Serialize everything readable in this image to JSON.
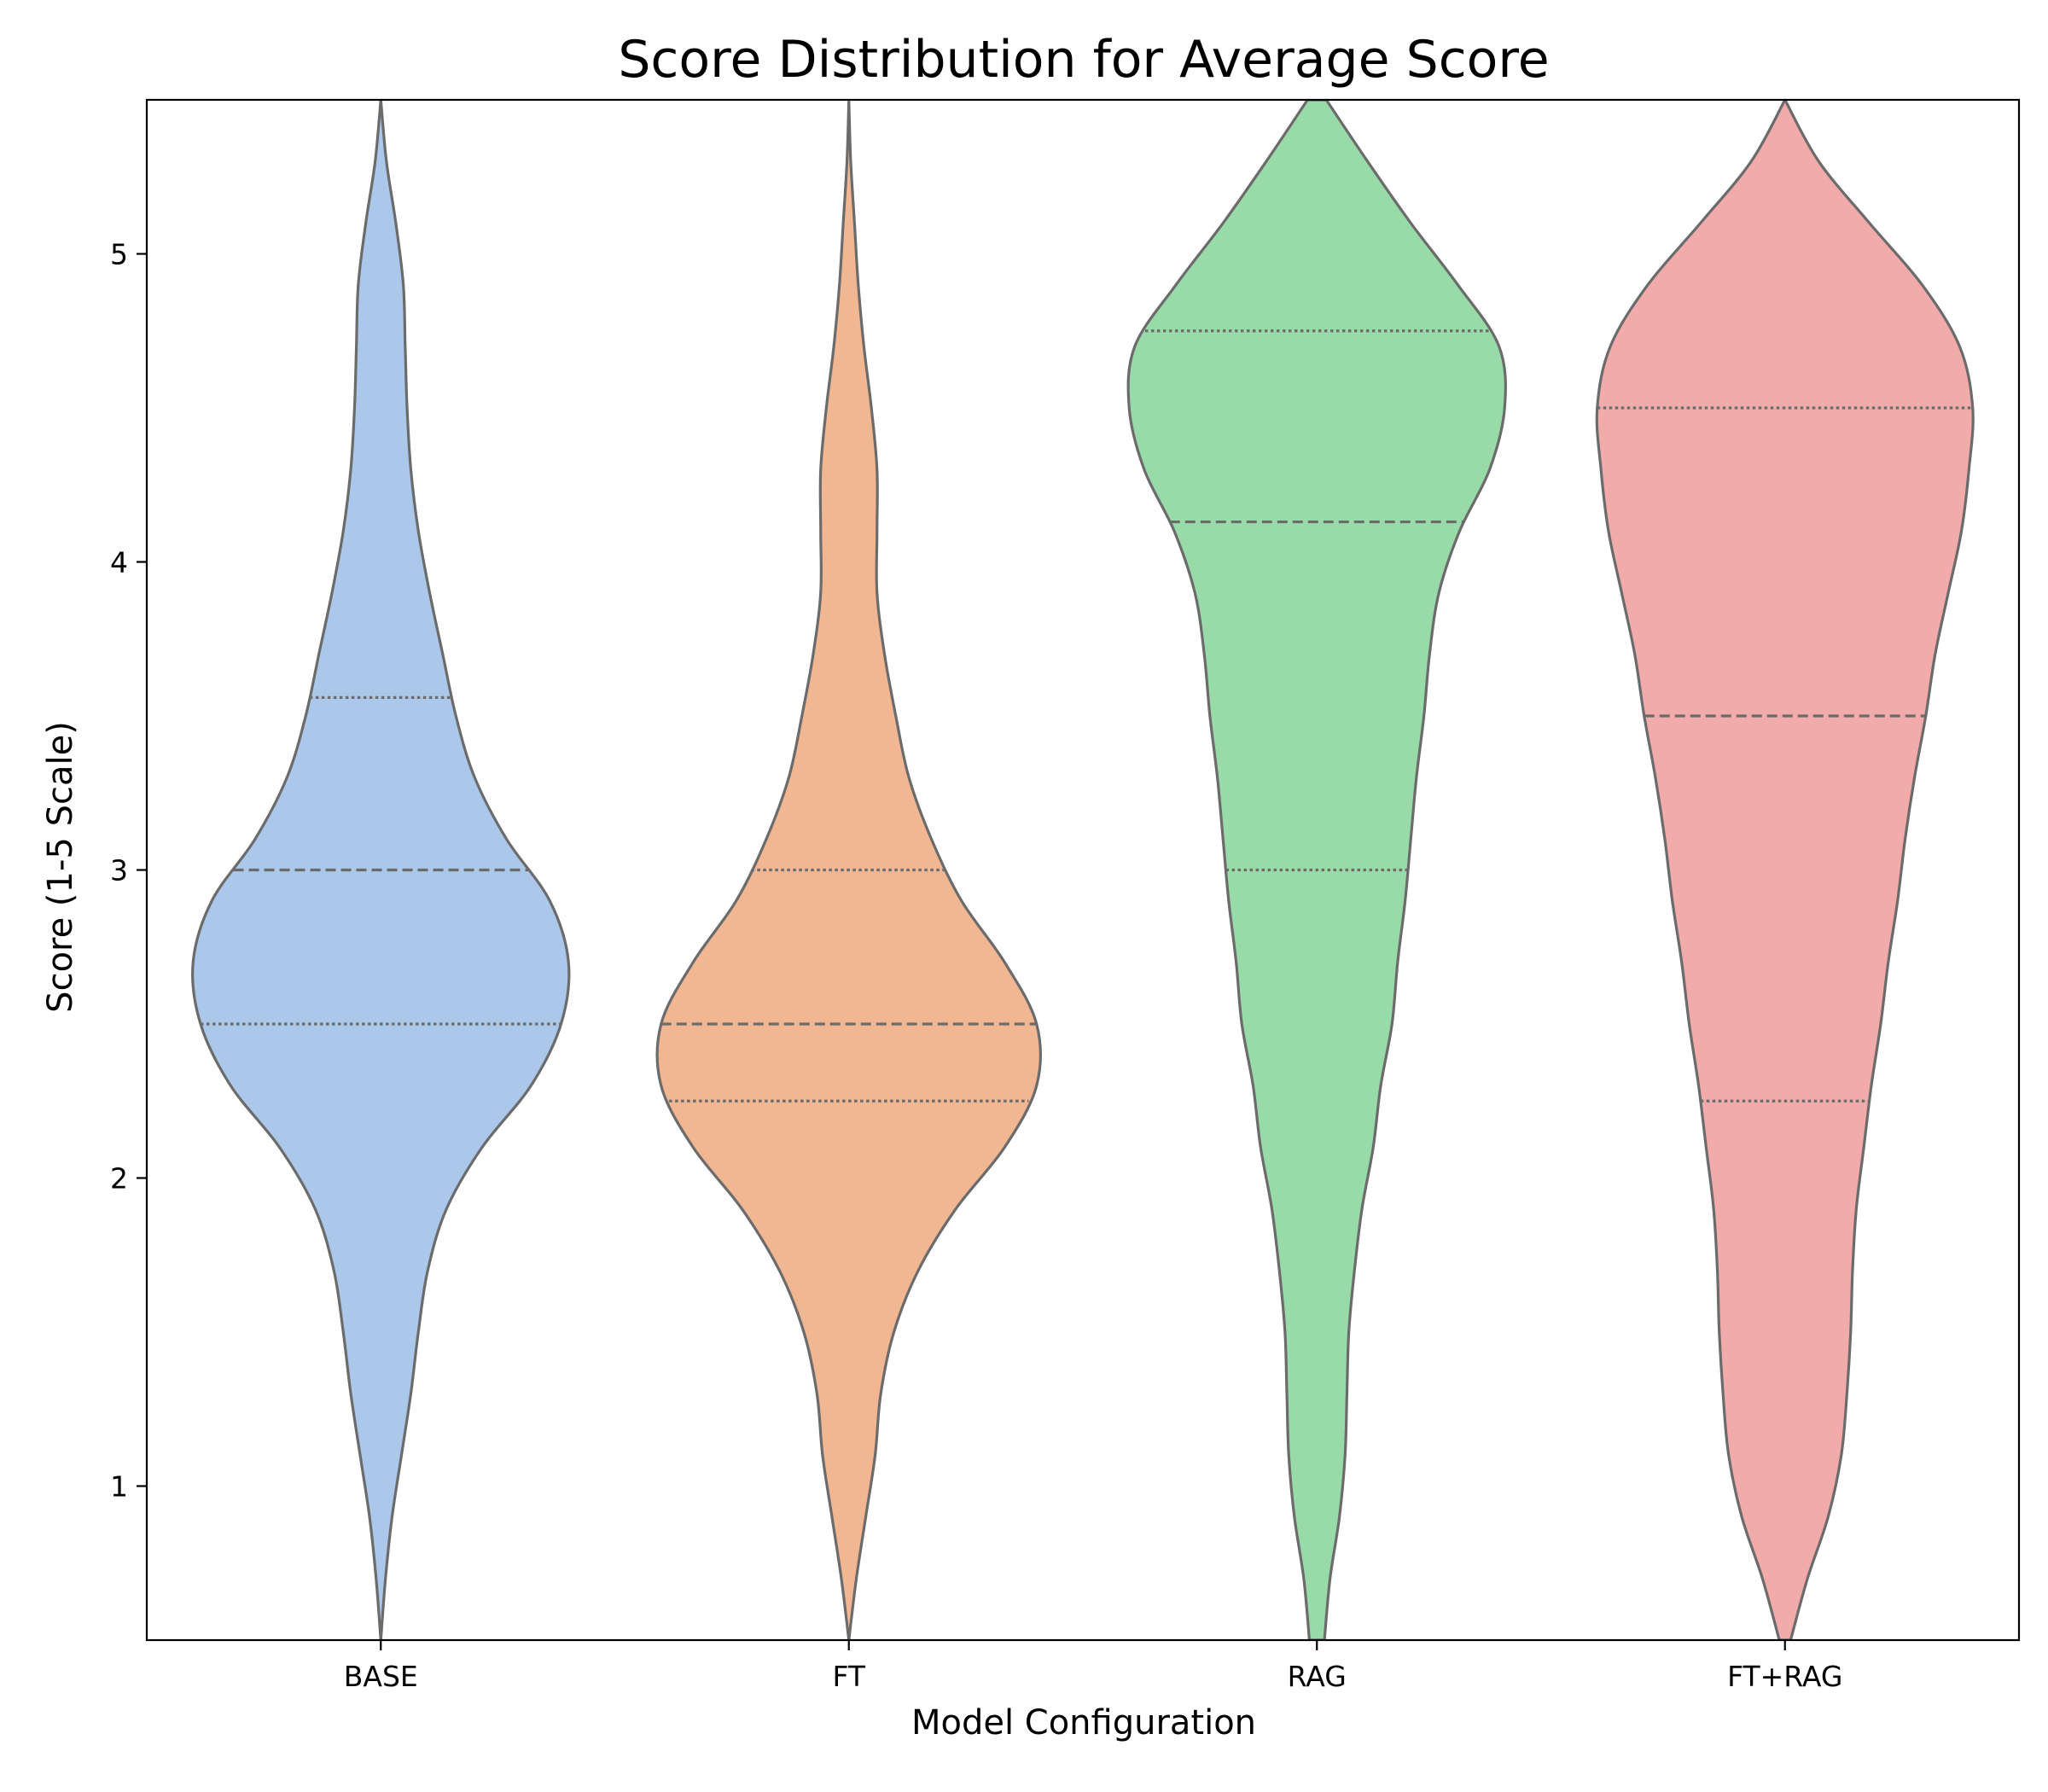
{
  "chart_data": {
    "type": "violin",
    "title": "Score Distribution for Average Score",
    "xlabel": "Model Configuration",
    "ylabel": "Score (1-5 Scale)",
    "ylim": [
      0.5,
      5.5
    ],
    "yticks": [
      1,
      2,
      3,
      4,
      5
    ],
    "grid": false,
    "inner": "quartile",
    "categories": [
      "BASE",
      "FT",
      "RAG",
      "FT+RAG"
    ],
    "colors": {
      "BASE": "#abc8ea",
      "FT": "#f0b792",
      "RAG": "#99dba8",
      "FT+RAG": "#f1abaa"
    },
    "outline_color": "#6b6b6b",
    "series": [
      {
        "name": "BASE",
        "quartiles": [
          2.5,
          3.0,
          3.56
        ],
        "density_y": [
          0.5,
          0.7,
          0.9,
          1.1,
          1.3,
          1.5,
          1.7,
          1.9,
          2.1,
          2.3,
          2.5,
          2.7,
          2.9,
          3.1,
          3.3,
          3.5,
          3.7,
          3.9,
          4.1,
          4.3,
          4.5,
          4.7,
          4.9,
          5.1,
          5.3,
          5.5
        ],
        "density_w": [
          0.0,
          0.025,
          0.06,
          0.11,
          0.16,
          0.2,
          0.25,
          0.35,
          0.54,
          0.8,
          0.96,
          1.0,
          0.9,
          0.67,
          0.5,
          0.4,
          0.33,
          0.26,
          0.2,
          0.16,
          0.14,
          0.13,
          0.12,
          0.08,
          0.03,
          0.0
        ]
      },
      {
        "name": "FT",
        "quartiles": [
          2.25,
          2.5,
          3.0
        ],
        "density_y": [
          0.5,
          0.7,
          0.9,
          1.1,
          1.3,
          1.5,
          1.7,
          1.9,
          2.1,
          2.3,
          2.5,
          2.7,
          2.9,
          3.1,
          3.3,
          3.5,
          3.7,
          3.9,
          4.1,
          4.3,
          4.5,
          4.7,
          4.9,
          5.1,
          5.3,
          5.5
        ],
        "density_w": [
          0.0,
          0.04,
          0.09,
          0.14,
          0.17,
          0.24,
          0.37,
          0.57,
          0.83,
          1.0,
          1.0,
          0.83,
          0.6,
          0.44,
          0.32,
          0.25,
          0.19,
          0.15,
          0.15,
          0.15,
          0.12,
          0.08,
          0.05,
          0.03,
          0.01,
          0.0
        ]
      },
      {
        "name": "RAG",
        "quartiles": [
          3.0,
          4.13,
          4.75
        ],
        "density_y": [
          0.5,
          0.7,
          0.9,
          1.1,
          1.3,
          1.5,
          1.7,
          1.9,
          2.1,
          2.3,
          2.5,
          2.7,
          2.9,
          3.1,
          3.3,
          3.5,
          3.7,
          3.9,
          4.1,
          4.3,
          4.5,
          4.7,
          4.9,
          5.1,
          5.3,
          5.5
        ],
        "density_w": [
          0.04,
          0.07,
          0.12,
          0.15,
          0.16,
          0.17,
          0.2,
          0.24,
          0.3,
          0.34,
          0.4,
          0.43,
          0.47,
          0.5,
          0.53,
          0.57,
          0.6,
          0.65,
          0.76,
          0.92,
          1.0,
          0.97,
          0.75,
          0.5,
          0.27,
          0.05
        ]
      },
      {
        "name": "FT+RAG",
        "quartiles": [
          2.25,
          3.5,
          4.5
        ],
        "density_y": [
          0.5,
          0.7,
          0.9,
          1.1,
          1.3,
          1.5,
          1.7,
          1.9,
          2.1,
          2.3,
          2.5,
          2.7,
          2.9,
          3.1,
          3.3,
          3.5,
          3.7,
          3.9,
          4.1,
          4.3,
          4.5,
          4.7,
          4.9,
          5.1,
          5.3,
          5.5
        ],
        "density_w": [
          0.03,
          0.12,
          0.23,
          0.3,
          0.33,
          0.35,
          0.36,
          0.38,
          0.42,
          0.46,
          0.51,
          0.55,
          0.6,
          0.64,
          0.69,
          0.75,
          0.8,
          0.87,
          0.94,
          0.98,
          1.0,
          0.93,
          0.73,
          0.45,
          0.18,
          0.0
        ]
      }
    ]
  }
}
